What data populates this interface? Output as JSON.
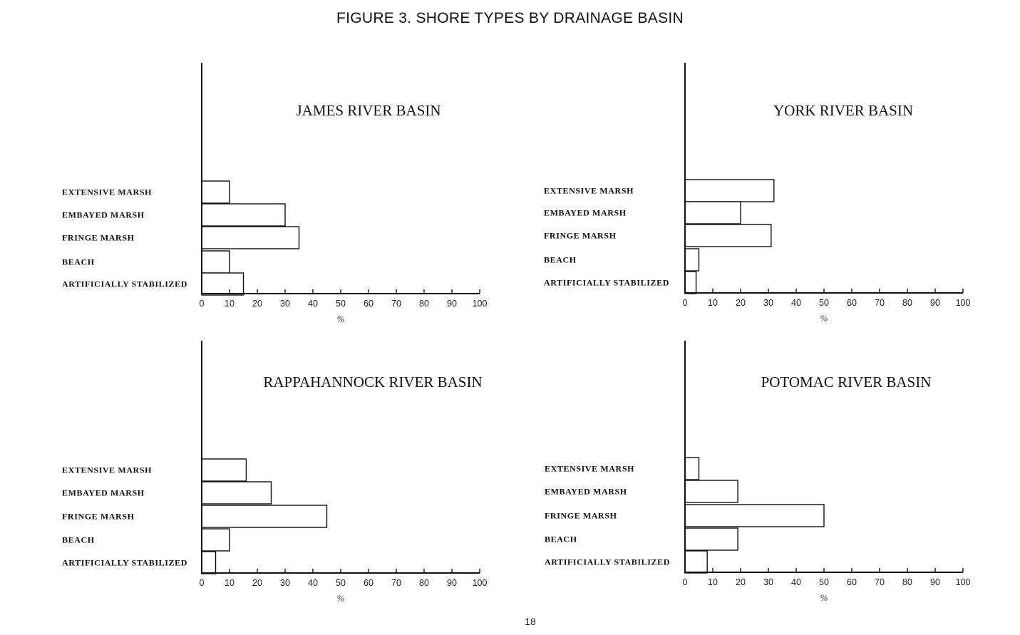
{
  "figure": {
    "title": "FIGURE 3.  SHORE TYPES BY DRAINAGE BASIN",
    "page_number": "18"
  },
  "chart_data": [
    {
      "type": "bar",
      "orientation": "horizontal",
      "title": "JAMES RIVER BASIN",
      "categories": [
        "EXTENSIVE MARSH",
        "EMBAYED MARSH",
        "FRINGE MARSH",
        "BEACH",
        "ARTIFICIALLY STABILIZED"
      ],
      "values": [
        10,
        30,
        35,
        10,
        15
      ],
      "xlabel": "%",
      "xlim": [
        0,
        100
      ],
      "xticks": [
        "0",
        "10",
        "20",
        "30",
        "40",
        "50",
        "60",
        "70",
        "80",
        "90",
        "100"
      ],
      "grid": false
    },
    {
      "type": "bar",
      "orientation": "horizontal",
      "title": "YORK RIVER BASIN",
      "categories": [
        "EXTENSIVE MARSH",
        "EMBAYED MARSH",
        "FRINGE MARSH",
        "BEACH",
        "ARTIFICIALLY STABILIZED"
      ],
      "values": [
        32,
        20,
        31,
        5,
        4
      ],
      "xlabel": "%",
      "xlim": [
        0,
        100
      ],
      "xticks": [
        "0",
        "10",
        "20",
        "30",
        "40",
        "50",
        "60",
        "70",
        "80",
        "90",
        "100"
      ],
      "grid": false
    },
    {
      "type": "bar",
      "orientation": "horizontal",
      "title": "RAPPAHANNOCK RIVER BASIN",
      "categories": [
        "EXTENSIVE MARSH",
        "EMBAYED MARSH",
        "FRINGE MARSH",
        "BEACH",
        "ARTIFICIALLY STABILIZED"
      ],
      "values": [
        16,
        25,
        45,
        10,
        5
      ],
      "xlabel": "%",
      "xlim": [
        0,
        100
      ],
      "xticks": [
        "0",
        "10",
        "20",
        "30",
        "40",
        "50",
        "60",
        "70",
        "80",
        "90",
        "100"
      ],
      "grid": false
    },
    {
      "type": "bar",
      "orientation": "horizontal",
      "title": "POTOMAC RIVER BASIN",
      "categories": [
        "EXTENSIVE MARSH",
        "EMBAYED MARSH",
        "FRINGE MARSH",
        "BEACH",
        "ARTIFICIALLY STABILIZED"
      ],
      "values": [
        5,
        19,
        50,
        19,
        8
      ],
      "xlabel": "%",
      "xlim": [
        0,
        100
      ],
      "xticks": [
        "0",
        "10",
        "20",
        "30",
        "40",
        "50",
        "60",
        "70",
        "80",
        "90",
        "100"
      ],
      "grid": false
    }
  ]
}
